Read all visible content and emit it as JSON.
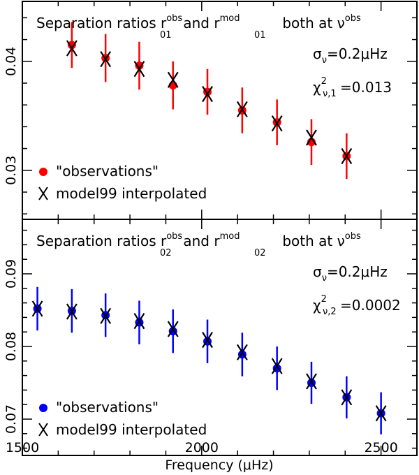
{
  "chart_data": [
    {
      "type": "scatter",
      "title_prefix": "Separation ratios r",
      "title_obs_sup": "obs",
      "title_sub": "01",
      "title_and": "and r",
      "title_mod_sup": "mod",
      "title_sub2": "01",
      "title_both": "both at ν",
      "title_nu_sup": "obs",
      "annotation_sigma": "σν=0.2μHz",
      "sigma_base": "σ",
      "sigma_sub": "ν",
      "sigma_val": "=0.2μHz",
      "chi_base": "χ",
      "chi_sup": "2",
      "chi_sub": "ν,1",
      "chi_val": "=0.013",
      "ylim": [
        0.0255,
        0.0455
      ],
      "yticks": [
        0.03,
        0.04
      ],
      "yticklabels": [
        "0.03",
        "0.04"
      ],
      "color": "#ff0000",
      "series": [
        {
          "name": "\"observations\"",
          "marker": "circle",
          "x": [
            1638,
            1732,
            1826,
            1920,
            2016,
            2113,
            2210,
            2306,
            2404
          ],
          "values": [
            0.0415,
            0.0403,
            0.0396,
            0.0378,
            0.0372,
            0.0355,
            0.0344,
            0.0326,
            0.0313
          ],
          "err": [
            0.0021,
            0.0022,
            0.0022,
            0.0022,
            0.0021,
            0.0021,
            0.0021,
            0.0021,
            0.0021
          ]
        },
        {
          "name": "model99 interpolated",
          "marker": "cross",
          "x": [
            1638,
            1732,
            1826,
            1920,
            2016,
            2113,
            2210,
            2306,
            2404
          ],
          "values": [
            0.0412,
            0.0402,
            0.0393,
            0.0383,
            0.037,
            0.0356,
            0.0343,
            0.033,
            0.0313
          ]
        }
      ]
    },
    {
      "type": "scatter",
      "title_prefix": "Separation ratios r",
      "title_obs_sup": "obs",
      "title_sub": "02",
      "title_and": "and r",
      "title_mod_sup": "mod",
      "title_sub2": "02",
      "title_both": "both at ν",
      "title_nu_sup": "obs",
      "annotation_sigma": "σν=0.2μHz",
      "sigma_base": "σ",
      "sigma_sub": "ν",
      "sigma_val": "=0.2μHz",
      "chi_base": "χ",
      "chi_sup": "2",
      "chi_sub": "ν,2",
      "chi_val": "=0.0002",
      "ylim": [
        0.065,
        0.0975
      ],
      "yticks": [
        0.07,
        0.08,
        0.09
      ],
      "yticklabels": [
        "0.07",
        "0.08",
        "0.09"
      ],
      "color": "#0000ff",
      "series": [
        {
          "name": "\"observations\"",
          "marker": "circle",
          "x": [
            1542,
            1638,
            1732,
            1826,
            1920,
            2016,
            2113,
            2210,
            2306,
            2404,
            2500
          ],
          "values": [
            0.0852,
            0.0849,
            0.0843,
            0.0833,
            0.0821,
            0.0807,
            0.0789,
            0.077,
            0.075,
            0.073,
            0.0708
          ],
          "err": [
            0.003,
            0.003,
            0.003,
            0.003,
            0.003,
            0.003,
            0.003,
            0.003,
            0.0029,
            0.0029,
            0.0029
          ]
        },
        {
          "name": "model99 interpolated",
          "marker": "cross",
          "x": [
            1542,
            1638,
            1732,
            1826,
            1920,
            2016,
            2113,
            2210,
            2306,
            2404,
            2500
          ],
          "values": [
            0.0852,
            0.0848,
            0.0842,
            0.0835,
            0.0824,
            0.0809,
            0.0792,
            0.0773,
            0.0752,
            0.073,
            0.0708
          ]
        }
      ]
    }
  ],
  "xaxis": {
    "label": "Frequency (μHz)",
    "xlim": [
      1500,
      2600
    ],
    "ticks": [
      1500,
      2000,
      2500
    ],
    "ticklabels": [
      "1500",
      "2000",
      "2500"
    ]
  }
}
